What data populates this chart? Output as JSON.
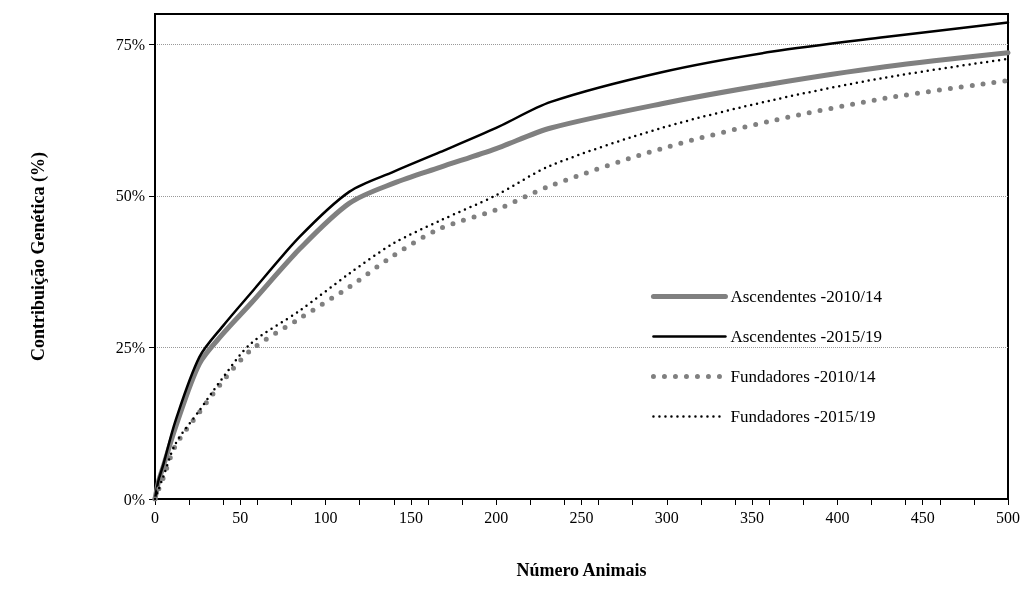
{
  "chart_data": {
    "type": "line",
    "xlabel": "Número Animais",
    "ylabel": "Contribuição Genética (%)",
    "xlim": [
      0,
      500
    ],
    "ylim": [
      0,
      80
    ],
    "xticks": [
      0,
      {
        "value": 20,
        "label": null
      },
      {
        "value": 40,
        "label": null
      },
      50,
      {
        "value": 60,
        "label": null
      },
      {
        "value": 80,
        "label": null
      },
      100,
      {
        "value": 120,
        "label": null
      },
      {
        "value": 140,
        "label": null
      },
      150,
      {
        "value": 160,
        "label": null
      },
      {
        "value": 180,
        "label": null
      },
      200,
      {
        "value": 220,
        "label": null
      },
      {
        "value": 240,
        "label": null
      },
      250,
      {
        "value": 260,
        "label": null
      },
      {
        "value": 280,
        "label": null
      },
      300,
      {
        "value": 320,
        "label": null
      },
      {
        "value": 340,
        "label": null
      },
      350,
      {
        "value": 360,
        "label": null
      },
      {
        "value": 380,
        "label": null
      },
      400,
      {
        "value": 420,
        "label": null
      },
      {
        "value": 440,
        "label": null
      },
      450,
      {
        "value": 460,
        "label": null
      },
      {
        "value": 480,
        "label": null
      },
      500
    ],
    "yticks": [
      {
        "value": 0,
        "label": "0%"
      },
      {
        "value": 25,
        "label": "25%"
      },
      {
        "value": 50,
        "label": "50%"
      },
      {
        "value": 75,
        "label": "75%"
      }
    ],
    "grid": "y",
    "legend": "right",
    "marker": "none",
    "x": [
      0,
      2,
      5,
      12,
      26,
      40,
      56,
      85,
      114,
      140,
      167,
      200,
      232,
      297,
      362,
      428,
      500
    ],
    "series": [
      {
        "name": "Ascendentes -2010/14",
        "color": "#808080",
        "line_style": "solid",
        "values": [
          0,
          2.8,
          5.5,
          11.8,
          22.3,
          27.3,
          32.2,
          41.3,
          48.8,
          52.1,
          54.7,
          57.8,
          61.2,
          65.2,
          68.5,
          71.3,
          73.6
        ]
      },
      {
        "name": "Ascendentes -2015/19",
        "color": "#000000",
        "line_style": "solid",
        "values": [
          0,
          3,
          5.8,
          12.9,
          23.4,
          28.6,
          33.9,
          43.3,
          50.7,
          54,
          57.2,
          61.2,
          65.5,
          70.4,
          73.8,
          76.2,
          78.6
        ]
      },
      {
        "name": "Fundadores -2010/14",
        "color": "#808080",
        "line_style": "dotted",
        "values": [
          0,
          1.5,
          3.6,
          8.8,
          14.3,
          19.5,
          24.5,
          29.8,
          35,
          40.2,
          44.6,
          47.7,
          51.7,
          57.8,
          62.4,
          66.1,
          69
        ]
      },
      {
        "name": "Fundadores -2015/19",
        "color": "#000000",
        "line_style": "dotted",
        "values": [
          0,
          1.5,
          3.8,
          9.1,
          14.6,
          20.1,
          25.6,
          31.1,
          37.2,
          42.2,
          45.9,
          50.1,
          55,
          61.2,
          65.8,
          69.5,
          72.6
        ]
      }
    ]
  }
}
